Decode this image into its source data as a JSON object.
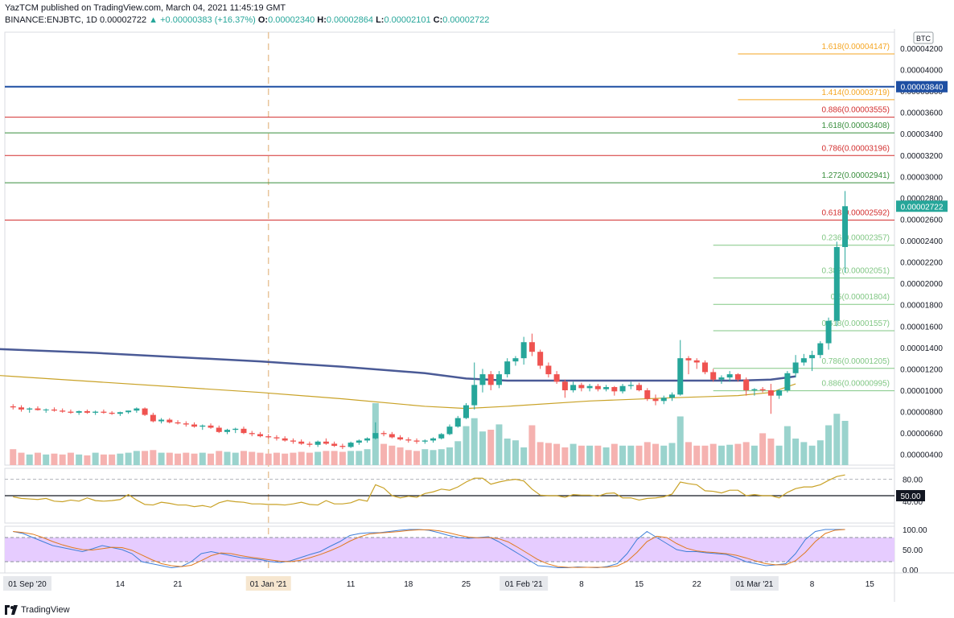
{
  "header": {
    "publisher": "YazTCM",
    "published_text": "published on TradingView.com, March 04, 2021 11:45:19 GMT",
    "symbol": "BINANCE:ENJBTC, 1D",
    "last": "0.00002722",
    "change": "+0.00000383 (+16.37%)",
    "o_label": "O:",
    "o": "0.00002340",
    "h_label": "H:",
    "h": "0.00002864",
    "l_label": "L:",
    "l": "0.00002101",
    "c_label": "C:",
    "c": "0.00002722"
  },
  "footer": {
    "brand": "TradingView"
  },
  "colors": {
    "up": "#26a69a",
    "down": "#ef5350",
    "sma_slow": "#4a5a96",
    "sma_fast": "#c9a227",
    "fib_orange": "#f5a623",
    "fib_red": "#d32f2f",
    "fib_green": "#388e3c",
    "fib_light": "#81c784",
    "blue_line": "#1e4fa3",
    "rsi": "#c9a227",
    "stoch_k": "#3f7fd8",
    "stoch_d": "#e07a1f",
    "stoch_band": "#e6ccff"
  },
  "chart_data": {
    "type": "candlestick",
    "currency": "BTC",
    "y_min": 3e-06,
    "y_max": 4.35e-05,
    "y_ticks": [
      "0.00004200",
      "0.00004000",
      "0.00003800",
      "0.00003600",
      "0.00003400",
      "0.00003200",
      "0.00003000",
      "0.00002800",
      "0.00002600",
      "0.00002400",
      "0.00002200",
      "0.00002000",
      "0.00001800",
      "0.00001600",
      "0.00001400",
      "0.00001200",
      "0.00001000",
      "0.00000800",
      "0.00000600",
      "0.00000400"
    ],
    "x_ticks": [
      "01 Sep '20",
      "14",
      "21",
      "01 Jan '21",
      "11",
      "18",
      "25",
      "01 Feb '21",
      "8",
      "15",
      "22",
      "01 Mar '21",
      "8",
      "15"
    ],
    "x_tick_days": [
      -1,
      13,
      20,
      31,
      41,
      48,
      55,
      62,
      69,
      76,
      83,
      90,
      97,
      104
    ],
    "dashed_marker_day": 31,
    "last_price_label": "0.00002722",
    "blue_level_label": "0.00003840",
    "fib_levels": [
      {
        "label": "1.618(0.00004147)",
        "price": 4.147e-05,
        "color_key": "fib_orange",
        "start_day": 88
      },
      {
        "label": "1.414(0.00003719)",
        "price": 3.719e-05,
        "color_key": "fib_orange",
        "start_day": 88
      },
      {
        "label": "0.886(0.00003555)",
        "price": 3.555e-05,
        "color_key": "fib_red",
        "start_day": -10
      },
      {
        "label": "1.618(0.00003408)",
        "price": 3.408e-05,
        "color_key": "fib_green",
        "start_day": -10
      },
      {
        "label": "0.786(0.00003196)",
        "price": 3.196e-05,
        "color_key": "fib_red",
        "start_day": -10
      },
      {
        "label": "1.272(0.00002941)",
        "price": 2.941e-05,
        "color_key": "fib_green",
        "start_day": -10
      },
      {
        "label": "0.618(0.00002592)",
        "price": 2.592e-05,
        "color_key": "fib_red",
        "start_day": -10
      },
      {
        "label": "0.236(0.00002357)",
        "price": 2.357e-05,
        "color_key": "fib_light",
        "start_day": 85
      },
      {
        "label": "0.382(0.00002051)",
        "price": 2.051e-05,
        "color_key": "fib_light",
        "start_day": 85
      },
      {
        "label": "0.5(0.00001804)",
        "price": 1.804e-05,
        "color_key": "fib_light",
        "start_day": 85
      },
      {
        "label": "0.618(0.00001557)",
        "price": 1.557e-05,
        "color_key": "fib_light",
        "start_day": 85
      },
      {
        "label": "0.786(0.00001205)",
        "price": 1.205e-05,
        "color_key": "fib_light",
        "start_day": 85
      },
      {
        "label": "0.886(0.00000995)",
        "price": 9.95e-06,
        "color_key": "fib_light",
        "start_day": 85
      }
    ],
    "blue_level_price": 3.84e-05,
    "candles": [
      [
        8.5e-06,
        8.7e-06,
        8.2e-06,
        8.4e-06
      ],
      [
        8.4e-06,
        8.6e-06,
        8e-06,
        8.2e-06
      ],
      [
        8.2e-06,
        8.4e-06,
        7.9e-06,
        8.3e-06
      ],
      [
        8.3e-06,
        8.5e-06,
        8.1e-06,
        8.15e-06
      ],
      [
        8.15e-06,
        8.3e-06,
        7.9e-06,
        8.2e-06
      ],
      [
        8.2e-06,
        8.4e-06,
        8e-06,
        8.1e-06
      ],
      [
        8.1e-06,
        8.3e-06,
        7.9e-06,
        8e-06
      ],
      [
        8e-06,
        8.2e-06,
        7.8e-06,
        7.9e-06
      ],
      [
        7.9e-06,
        8.1e-06,
        7.7e-06,
        8.05e-06
      ],
      [
        8.05e-06,
        8.2e-06,
        7.8e-06,
        7.9e-06
      ],
      [
        7.9e-06,
        8.1e-06,
        7.7e-06,
        8e-06
      ],
      [
        8e-06,
        8.2e-06,
        7.8e-06,
        7.9e-06
      ],
      [
        7.9e-06,
        8.05e-06,
        7.7e-06,
        7.8e-06
      ],
      [
        7.8e-06,
        8e-06,
        7.6e-06,
        7.95e-06
      ],
      [
        7.95e-06,
        8.1e-06,
        7.8e-06,
        8.1e-06
      ],
      [
        8.1e-06,
        8.4e-06,
        7.9e-06,
        8.3e-06
      ],
      [
        8.3e-06,
        8.4e-06,
        7.6e-06,
        7.7e-06
      ],
      [
        7.7e-06,
        7.9e-06,
        7e-06,
        7.1e-06
      ],
      [
        7.1e-06,
        7.4e-06,
        6.9e-06,
        7.25e-06
      ],
      [
        7.25e-06,
        7.4e-06,
        6.9e-06,
        7e-06
      ],
      [
        7e-06,
        7.2e-06,
        6.8e-06,
        6.9e-06
      ],
      [
        6.9e-06,
        7.1e-06,
        6.6e-06,
        6.8e-06
      ],
      [
        6.8e-06,
        7e-06,
        6.5e-06,
        6.6e-06
      ],
      [
        6.6e-06,
        6.8e-06,
        6.3e-06,
        6.7e-06
      ],
      [
        6.7e-06,
        6.9e-06,
        6.4e-06,
        6.5e-06
      ],
      [
        6.5e-06,
        6.7e-06,
        6e-06,
        6.1e-06
      ],
      [
        6.1e-06,
        6.4e-06,
        5.9e-06,
        6.3e-06
      ],
      [
        6.3e-06,
        6.5e-06,
        6e-06,
        6.4e-06
      ],
      [
        6.4e-06,
        6.6e-06,
        5.9e-06,
        6e-06
      ],
      [
        6e-06,
        6.2e-06,
        5.7e-06,
        5.9e-06
      ],
      [
        5.9e-06,
        6.1e-06,
        5.6e-06,
        5.7e-06
      ],
      [
        5.7e-06,
        5.9e-06,
        5.5e-06,
        5.6e-06
      ],
      [
        5.6e-06,
        5.8e-06,
        5.3e-06,
        5.5e-06
      ],
      [
        5.5e-06,
        5.7e-06,
        5.2e-06,
        5.3e-06
      ],
      [
        5.3e-06,
        5.5e-06,
        5e-06,
        5.2e-06
      ],
      [
        5.2e-06,
        5.4e-06,
        4.9e-06,
        5e-06
      ],
      [
        5e-06,
        5.2e-06,
        4.7e-06,
        4.9e-06
      ],
      [
        4.9e-06,
        5.3e-06,
        4.7e-06,
        5.2e-06
      ],
      [
        5.2e-06,
        5.5e-06,
        4.9e-06,
        5e-06
      ],
      [
        5e-06,
        5.2e-06,
        4.7e-06,
        4.8e-06
      ],
      [
        4.8e-06,
        5e-06,
        4.5e-06,
        4.7e-06
      ],
      [
        4.7e-06,
        5.2e-06,
        4.6e-06,
        5.1e-06
      ],
      [
        5.1e-06,
        5.4e-06,
        4.9e-06,
        5.3e-06
      ],
      [
        5.3e-06,
        5.6e-06,
        5.1e-06,
        5.5e-06
      ],
      [
        5.5e-06,
        7e-06,
        5.4e-06,
        6e-06
      ],
      [
        6e-06,
        6.2e-06,
        5.7e-06,
        5.9e-06
      ],
      [
        5.9e-06,
        6.1e-06,
        5.5e-06,
        5.6e-06
      ],
      [
        5.6e-06,
        5.8e-06,
        5.3e-06,
        5.4e-06
      ],
      [
        5.4e-06,
        5.6e-06,
        5.1e-06,
        5.3e-06
      ],
      [
        5.3e-06,
        5.5e-06,
        5e-06,
        5.2e-06
      ],
      [
        5.2e-06,
        5.4e-06,
        5e-06,
        5.3e-06
      ],
      [
        5.3e-06,
        5.6e-06,
        5.1e-06,
        5.5e-06
      ],
      [
        5.5e-06,
        6e-06,
        5.4e-06,
        5.9e-06
      ],
      [
        5.9e-06,
        6.8e-06,
        5.8e-06,
        6.6e-06
      ],
      [
        6.6e-06,
        7.6e-06,
        6.5e-06,
        7.4e-06
      ],
      [
        7.4e-06,
        8.8e-06,
        7.3e-06,
        8.6e-06
      ],
      [
        8.6e-06,
        1.26e-05,
        8.2e-06,
        1.05e-05
      ],
      [
        1.05e-05,
        1.2e-05,
        9.8e-06,
        1.15e-05
      ],
      [
        1.15e-05,
        1.18e-05,
        1e-05,
        1.05e-05
      ],
      [
        1.05e-05,
        1.18e-05,
        1.02e-05,
        1.15e-05
      ],
      [
        1.15e-05,
        1.3e-05,
        1.12e-05,
        1.27e-05
      ],
      [
        1.27e-05,
        1.32e-05,
        1.23e-05,
        1.3e-05
      ],
      [
        1.3e-05,
        1.5e-05,
        1.24e-05,
        1.45e-05
      ],
      [
        1.45e-05,
        1.53e-05,
        1.32e-05,
        1.36e-05
      ],
      [
        1.36e-05,
        1.38e-05,
        1.2e-05,
        1.23e-05
      ],
      [
        1.23e-05,
        1.26e-05,
        1.12e-05,
        1.15e-05
      ],
      [
        1.15e-05,
        1.18e-05,
        1.06e-05,
        1.08e-05
      ],
      [
        1.08e-05,
        1.1e-05,
        9.3e-06,
        1e-05
      ],
      [
        1e-05,
        1.08e-05,
        9.8e-06,
        1.05e-05
      ],
      [
        1.05e-05,
        1.07e-05,
        9.9e-06,
        1.02e-05
      ],
      [
        1.02e-05,
        1.06e-05,
        9.9e-06,
        1.04e-05
      ],
      [
        1.04e-05,
        1.06e-05,
        9.9e-06,
        1.01e-05
      ],
      [
        1.01e-05,
        1.05e-05,
        9.9e-06,
        1.03e-05
      ],
      [
        1.03e-05,
        1.04e-05,
        9.5e-06,
        9.9e-06
      ],
      [
        9.9e-06,
        1.06e-05,
        9.7e-06,
        1.04e-05
      ],
      [
        1.04e-05,
        1.08e-05,
        1.01e-05,
        1.05e-05
      ],
      [
        1.05e-05,
        1.07e-05,
        9.9e-06,
        1e-05
      ],
      [
        1e-05,
        1.02e-05,
        9e-06,
        9.2e-06
      ],
      [
        9.2e-06,
        9.6e-06,
        8.6e-06,
        9e-06
      ],
      [
        9e-06,
        9.5e-06,
        8.7e-06,
        9.3e-06
      ],
      [
        9.3e-06,
        9.8e-06,
        9e-06,
        9.6e-06
      ],
      [
        9.6e-06,
        1.47e-05,
        9.5e-06,
        1.3e-05
      ],
      [
        1.3e-05,
        1.32e-05,
        1.15e-05,
        1.28e-05
      ],
      [
        1.28e-05,
        1.3e-05,
        1.2e-05,
        1.26e-05
      ],
      [
        1.26e-05,
        1.28e-05,
        1.15e-05,
        1.17e-05
      ],
      [
        1.17e-05,
        1.2e-05,
        1.08e-05,
        1.1e-05
      ],
      [
        1.1e-05,
        1.14e-05,
        1.06e-05,
        1.12e-05
      ],
      [
        1.12e-05,
        1.18e-05,
        1.08e-05,
        1.15e-05
      ],
      [
        1.15e-05,
        1.16e-05,
        1.08e-05,
        1.1e-05
      ],
      [
        1.1e-05,
        1.12e-05,
        9.5e-06,
        1e-05
      ],
      [
        1e-05,
        1.02e-05,
        9.5e-06,
        1.01e-05
      ],
      [
        1.01e-05,
        1.03e-05,
        9.8e-06,
        1e-05
      ],
      [
        1e-05,
        1.06e-05,
        7.8e-06,
        9.5e-06
      ],
      [
        9.5e-06,
        1.01e-05,
        9.2e-06,
        1e-05
      ],
      [
        1e-05,
        1.18e-05,
        9.8e-06,
        1.16e-05
      ],
      [
        1.16e-05,
        1.33e-05,
        1.12e-05,
        1.26e-05
      ],
      [
        1.26e-05,
        1.34e-05,
        1.23e-05,
        1.3e-05
      ],
      [
        1.3e-05,
        1.37e-05,
        1.18e-05,
        1.33e-05
      ],
      [
        1.33e-05,
        1.46e-05,
        1.3e-05,
        1.44e-05
      ],
      [
        1.44e-05,
        1.68e-05,
        1.38e-05,
        1.65e-05
      ],
      [
        1.65e-05,
        2.39e-05,
        1.6e-05,
        2.34e-05
      ],
      [
        2.34e-05,
        2.864e-05,
        2.101e-05,
        2.722e-05
      ]
    ],
    "volume_scale_max": 100,
    "volumes": [
      18,
      14,
      12,
      14,
      12,
      13,
      12,
      14,
      12,
      11,
      14,
      12,
      12,
      13,
      14,
      16,
      16,
      17,
      14,
      14,
      13,
      14,
      13,
      14,
      13,
      16,
      15,
      14,
      16,
      15,
      14,
      13,
      14,
      13,
      14,
      15,
      14,
      15,
      16,
      16,
      15,
      16,
      16,
      18,
      70,
      24,
      22,
      20,
      17,
      16,
      18,
      17,
      18,
      20,
      27,
      44,
      53,
      38,
      40,
      46,
      30,
      28,
      20,
      45,
      26,
      25,
      24,
      20,
      24,
      22,
      22,
      22,
      20,
      24,
      22,
      22,
      22,
      26,
      24,
      22,
      25,
      55,
      26,
      22,
      22,
      24,
      22,
      23,
      24,
      26,
      22,
      36,
      30,
      22,
      44,
      30,
      26,
      22,
      28,
      45,
      58,
      50
    ],
    "sma_slow": {
      "start_day": -10,
      "points": [
        [
          -10,
          1.41e-05
        ],
        [
          0,
          1.38e-05
        ],
        [
          10,
          1.35e-05
        ],
        [
          20,
          1.31e-05
        ],
        [
          30,
          1.27e-05
        ],
        [
          40,
          1.22e-05
        ],
        [
          50,
          1.16e-05
        ],
        [
          55,
          1.11e-05
        ],
        [
          60,
          1.09e-05
        ],
        [
          70,
          1.09e-05
        ],
        [
          80,
          1.09e-05
        ],
        [
          88,
          1.09e-05
        ],
        [
          92,
          1.1e-05
        ],
        [
          95,
          1.13e-05
        ]
      ]
    },
    "sma_fast": {
      "points": [
        [
          -10,
          1.18e-05
        ],
        [
          0,
          1.13e-05
        ],
        [
          10,
          1.08e-05
        ],
        [
          20,
          1.03e-05
        ],
        [
          30,
          9.8e-06
        ],
        [
          40,
          9.2e-06
        ],
        [
          50,
          8.5e-06
        ],
        [
          55,
          8.3e-06
        ],
        [
          60,
          8.5e-06
        ],
        [
          70,
          9e-06
        ],
        [
          80,
          9.3e-06
        ],
        [
          88,
          9.5e-06
        ],
        [
          92,
          9.8e-06
        ],
        [
          95,
          1.06e-05
        ]
      ]
    },
    "rsi": {
      "ticks": [
        "80.00",
        "50.00",
        "40.00"
      ],
      "level_label": "50.00",
      "values": [
        48,
        45,
        44,
        43,
        45,
        40,
        39,
        42,
        40,
        46,
        41,
        40,
        41,
        43,
        52,
        42,
        34,
        33,
        38,
        36,
        33,
        33,
        30,
        32,
        29,
        37,
        41,
        39,
        38,
        35,
        35,
        34,
        34,
        33,
        35,
        38,
        34,
        33,
        41,
        35,
        35,
        37,
        43,
        40,
        70,
        64,
        50,
        46,
        49,
        47,
        54,
        57,
        62,
        60,
        66,
        75,
        82,
        82,
        71,
        75,
        78,
        80,
        77,
        62,
        51,
        50,
        50,
        47,
        52,
        51,
        51,
        49,
        54,
        55,
        46,
        46,
        42,
        45,
        46,
        48,
        53,
        75,
        72,
        70,
        59,
        58,
        55,
        60,
        60,
        50,
        52,
        50,
        50,
        46,
        56,
        63,
        66,
        66,
        70,
        78,
        85,
        88
      ]
    },
    "stoch": {
      "ticks": [
        "100.00",
        "50.00",
        "0.00"
      ],
      "k": [
        95,
        90,
        80,
        70,
        60,
        55,
        50,
        45,
        52,
        60,
        55,
        50,
        40,
        20,
        15,
        10,
        5,
        8,
        20,
        40,
        45,
        40,
        35,
        30,
        28,
        25,
        20,
        18,
        22,
        30,
        38,
        45,
        58,
        70,
        85,
        90,
        92,
        92,
        95,
        98,
        100,
        100,
        98,
        92,
        85,
        80,
        78,
        80,
        82,
        70,
        55,
        40,
        25,
        10,
        8,
        5,
        5,
        7,
        6,
        5,
        8,
        15,
        40,
        75,
        95,
        80,
        65,
        50,
        45,
        45,
        42,
        40,
        38,
        30,
        20,
        15,
        10,
        12,
        15,
        40,
        75,
        95,
        100,
        100,
        100
      ]
    }
  }
}
